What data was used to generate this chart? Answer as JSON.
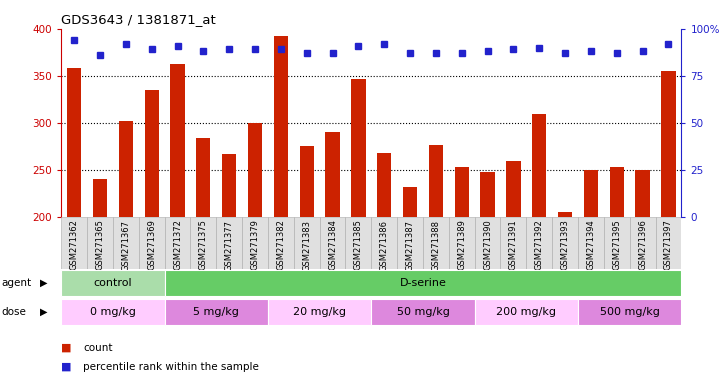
{
  "title": "GDS3643 / 1381871_at",
  "samples": [
    "GSM271362",
    "GSM271365",
    "GSM271367",
    "GSM271369",
    "GSM271372",
    "GSM271375",
    "GSM271377",
    "GSM271379",
    "GSM271382",
    "GSM271383",
    "GSM271384",
    "GSM271385",
    "GSM271386",
    "GSM271387",
    "GSM271388",
    "GSM271389",
    "GSM271390",
    "GSM271391",
    "GSM271392",
    "GSM271393",
    "GSM271394",
    "GSM271395",
    "GSM271396",
    "GSM271397"
  ],
  "counts": [
    358,
    240,
    302,
    335,
    363,
    284,
    267,
    300,
    392,
    275,
    290,
    347,
    268,
    232,
    276,
    253,
    248,
    260,
    309,
    205,
    250,
    253,
    250,
    355
  ],
  "percentiles": [
    94,
    86,
    92,
    89,
    91,
    88,
    89,
    89,
    89,
    87,
    87,
    91,
    92,
    87,
    87,
    87,
    88,
    89,
    90,
    87,
    88,
    87,
    88,
    92
  ],
  "bar_color": "#cc2200",
  "dot_color": "#2222cc",
  "ylim_left": [
    200,
    400
  ],
  "ylim_right": [
    0,
    100
  ],
  "yticks_left": [
    200,
    250,
    300,
    350,
    400
  ],
  "yticks_right": [
    0,
    25,
    50,
    75,
    100
  ],
  "grid_lines": [
    250,
    300,
    350
  ],
  "agent_groups": [
    {
      "label": "control",
      "start": 0,
      "end": 4,
      "color": "#aaddaa"
    },
    {
      "label": "D-serine",
      "start": 4,
      "end": 24,
      "color": "#66cc66"
    }
  ],
  "dose_groups": [
    {
      "label": "0 mg/kg",
      "start": 0,
      "end": 4,
      "color": "#ffccff"
    },
    {
      "label": "5 mg/kg",
      "start": 4,
      "end": 8,
      "color": "#dd88dd"
    },
    {
      "label": "20 mg/kg",
      "start": 8,
      "end": 12,
      "color": "#ffccff"
    },
    {
      "label": "50 mg/kg",
      "start": 12,
      "end": 16,
      "color": "#dd88dd"
    },
    {
      "label": "200 mg/kg",
      "start": 16,
      "end": 20,
      "color": "#ffccff"
    },
    {
      "label": "500 mg/kg",
      "start": 20,
      "end": 24,
      "color": "#dd88dd"
    }
  ],
  "legend_count_color": "#cc2200",
  "legend_dot_color": "#2222cc",
  "ylabel_left_color": "#cc0000",
  "ylabel_right_color": "#2222cc"
}
